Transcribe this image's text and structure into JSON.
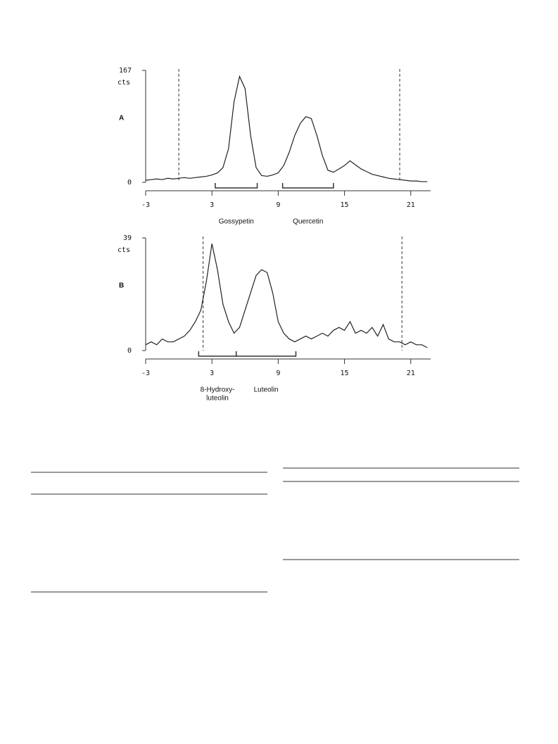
{
  "chart_data": [
    {
      "type": "line",
      "panel": "A",
      "y_unit": "cts",
      "color": "#222222",
      "x": [
        -3,
        -2.5,
        -2,
        -1.5,
        -1,
        -0.5,
        0,
        0.5,
        1,
        1.5,
        2,
        2.5,
        3,
        3.5,
        4,
        4.5,
        5,
        5.5,
        6,
        6.5,
        7,
        7.5,
        8,
        8.5,
        9,
        9.5,
        10,
        10.5,
        11,
        11.5,
        12,
        12.5,
        13,
        13.5,
        14,
        14.5,
        15,
        15.5,
        16,
        16.5,
        17,
        17.5,
        18,
        18.5,
        19,
        19.5,
        20,
        20.5,
        21,
        21.5,
        22,
        22.5
      ],
      "values": [
        3,
        4,
        5,
        4,
        6,
        5,
        6,
        7,
        6,
        7,
        8,
        9,
        11,
        14,
        22,
        50,
        120,
        158,
        140,
        70,
        22,
        10,
        9,
        11,
        14,
        25,
        45,
        70,
        88,
        98,
        95,
        70,
        40,
        18,
        15,
        20,
        25,
        32,
        26,
        20,
        16,
        12,
        10,
        8,
        6,
        5,
        4,
        3,
        2,
        2,
        1,
        1
      ],
      "xlim": [
        -3,
        22.8
      ],
      "xticks": [
        -3,
        3,
        9,
        15,
        21
      ],
      "ylim": [
        0,
        167
      ],
      "yticks": [
        0,
        167
      ],
      "reference_lines": [
        0,
        20
      ],
      "regions": [
        {
          "label": [
            "Gossypetin"
          ],
          "range": [
            3.3,
            7.1
          ]
        },
        {
          "label": [
            "Quercetin"
          ],
          "range": [
            9.4,
            14.0
          ]
        }
      ]
    },
    {
      "type": "line",
      "panel": "B",
      "y_unit": "cts",
      "color": "#222222",
      "x": [
        -3,
        -2.5,
        -2,
        -1.5,
        -1,
        -0.5,
        0,
        0.5,
        1,
        1.5,
        2,
        2.5,
        3,
        3.5,
        4,
        4.5,
        5,
        5.5,
        6,
        6.5,
        7,
        7.5,
        8,
        8.5,
        9,
        9.5,
        10,
        10.5,
        11,
        11.5,
        12,
        12.5,
        13,
        13.5,
        14,
        14.5,
        15,
        15.5,
        16,
        16.5,
        17,
        17.5,
        18,
        18.5,
        19,
        19.5,
        20,
        20.5,
        21,
        21.5,
        22,
        22.5
      ],
      "values": [
        2,
        3,
        2,
        4,
        3,
        3,
        4,
        5,
        7,
        10,
        14,
        24,
        37,
        28,
        16,
        10,
        6,
        8,
        14,
        20,
        26,
        28,
        27,
        20,
        10,
        6,
        4,
        3,
        4,
        5,
        4,
        5,
        6,
        5,
        7,
        8,
        7,
        10,
        6,
        7,
        6,
        8,
        5,
        9,
        4,
        3,
        3,
        2,
        3,
        2,
        2,
        1
      ],
      "xlim": [
        -3,
        22.8
      ],
      "xticks": [
        -3,
        3,
        9,
        15,
        21
      ],
      "ylim": [
        0,
        39
      ],
      "yticks": [
        0,
        39
      ],
      "reference_lines": [
        2.2,
        20.2
      ],
      "regions": [
        {
          "label": [
            "8-Hydroxy-",
            "luteolin"
          ],
          "range": [
            1.8,
            5.2
          ]
        },
        {
          "label": [
            "Luteolin"
          ],
          "range": [
            5.2,
            10.6
          ]
        }
      ]
    }
  ]
}
